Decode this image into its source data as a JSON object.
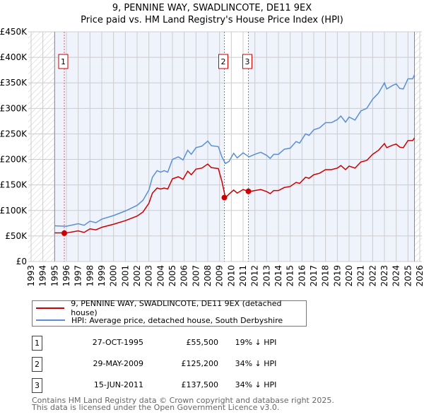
{
  "chart_data": {
    "type": "line",
    "title": "9, PENNINE WAY, SWADLINCOTE, DE11 9EX",
    "subtitle": "Price paid vs. HM Land Registry's House Price Index (HPI)",
    "xlim": [
      1993,
      2026
    ],
    "ylim": [
      0,
      450000
    ],
    "x_ticks": [
      "1993",
      "1994",
      "1995",
      "1996",
      "1997",
      "1998",
      "1999",
      "2000",
      "2001",
      "2002",
      "2003",
      "2004",
      "2005",
      "2006",
      "2007",
      "2008",
      "2009",
      "2010",
      "2011",
      "2012",
      "2013",
      "2014",
      "2015",
      "2016",
      "2017",
      "2018",
      "2019",
      "2020",
      "2021",
      "2022",
      "2023",
      "2024",
      "2025",
      "2026"
    ],
    "y_ticks": [
      "£0",
      "£50K",
      "£100K",
      "£150K",
      "£200K",
      "£250K",
      "£300K",
      "£350K",
      "£400K",
      "£450K"
    ],
    "grid": true,
    "x": [
      1995,
      1996,
      1997,
      1997.5,
      1998,
      1998.5,
      1999,
      2000,
      2001,
      2002,
      2002.5,
      2003,
      2003.3,
      2003.7,
      2004,
      2004.3,
      2004.6,
      2005,
      2005.5,
      2005.9,
      2006.3,
      2006.6,
      2007,
      2007.5,
      2008,
      2008.3,
      2008.9,
      2009.2,
      2009.5,
      2009.8,
      2010.2,
      2010.5,
      2011,
      2011.5,
      2012,
      2012.5,
      2013,
      2013.3,
      2013.6,
      2014,
      2014.5,
      2015,
      2015.5,
      2015.8,
      2016.3,
      2016.6,
      2017,
      2017.5,
      2018,
      2018.5,
      2019,
      2019.3,
      2019.7,
      2020,
      2020.5,
      2021,
      2021.5,
      2022,
      2022.5,
      2023,
      2023.2,
      2023.7,
      2024,
      2024.3,
      2024.6,
      2025,
      2025.4,
      2025.55
    ],
    "series": [
      {
        "name": "9, PENNINE WAY, SWADLINCOTE, DE11 9EX (detached house)",
        "color": "#cc0000",
        "values": [
          56,
          56,
          60,
          57,
          64,
          62,
          67,
          73,
          80,
          89,
          97,
          114,
          134,
          144,
          142,
          144,
          142,
          162,
          166,
          161,
          177,
          170,
          181,
          183,
          191,
          184,
          182,
          157,
          125,
          132,
          140,
          134,
          141,
          137,
          139,
          141,
          137,
          133,
          139,
          139,
          145,
          147,
          155,
          153,
          165,
          163,
          170,
          173,
          180,
          180,
          183,
          188,
          180,
          187,
          183,
          195,
          198,
          210,
          218,
          231,
          223,
          228,
          230,
          224,
          223,
          237,
          237,
          242
        ]
      },
      {
        "name": "HPI: Average price, detached house, South Derbyshire",
        "color": "#5b8fd4",
        "values": [
          70,
          69,
          74,
          71,
          79,
          76,
          83,
          90,
          99,
          110,
          120,
          140,
          165,
          178,
          175,
          178,
          175,
          200,
          205,
          199,
          218,
          210,
          223,
          226,
          236,
          227,
          225,
          205,
          192,
          196,
          212,
          203,
          213,
          205,
          210,
          214,
          208,
          202,
          210,
          210,
          220,
          222,
          235,
          232,
          250,
          247,
          258,
          262,
          272,
          272,
          278,
          285,
          273,
          283,
          277,
          295,
          300,
          318,
          330,
          350,
          338,
          345,
          348,
          339,
          338,
          358,
          358,
          366
        ]
      }
    ],
    "value_unit": "£K",
    "sales": [
      {
        "label": "1",
        "x": 1995.82,
        "y": 55.5
      },
      {
        "label": "2",
        "x": 2009.41,
        "y": 125.2
      },
      {
        "label": "3",
        "x": 2011.45,
        "y": 137.5
      }
    ],
    "hatched_before": 1995,
    "hatched_after": 2025.55,
    "legend_placement": "below"
  },
  "legend": [
    "9, PENNINE WAY, SWADLINCOTE, DE11 9EX (detached house)",
    "HPI: Average price, detached house, South Derbyshire"
  ],
  "transactions": [
    {
      "num": "1",
      "date": "27-OCT-1995",
      "price": "£55,500",
      "hpi": "19% ↓ HPI"
    },
    {
      "num": "2",
      "date": "29-MAY-2009",
      "price": "£125,200",
      "hpi": "34% ↓ HPI"
    },
    {
      "num": "3",
      "date": "15-JUN-2011",
      "price": "£137,500",
      "hpi": "34% ↓ HPI"
    }
  ],
  "footer": [
    "Contains HM Land Registry data © Crown copyright and database right 2025.",
    "This data is licensed under the Open Government Licence v3.0."
  ]
}
